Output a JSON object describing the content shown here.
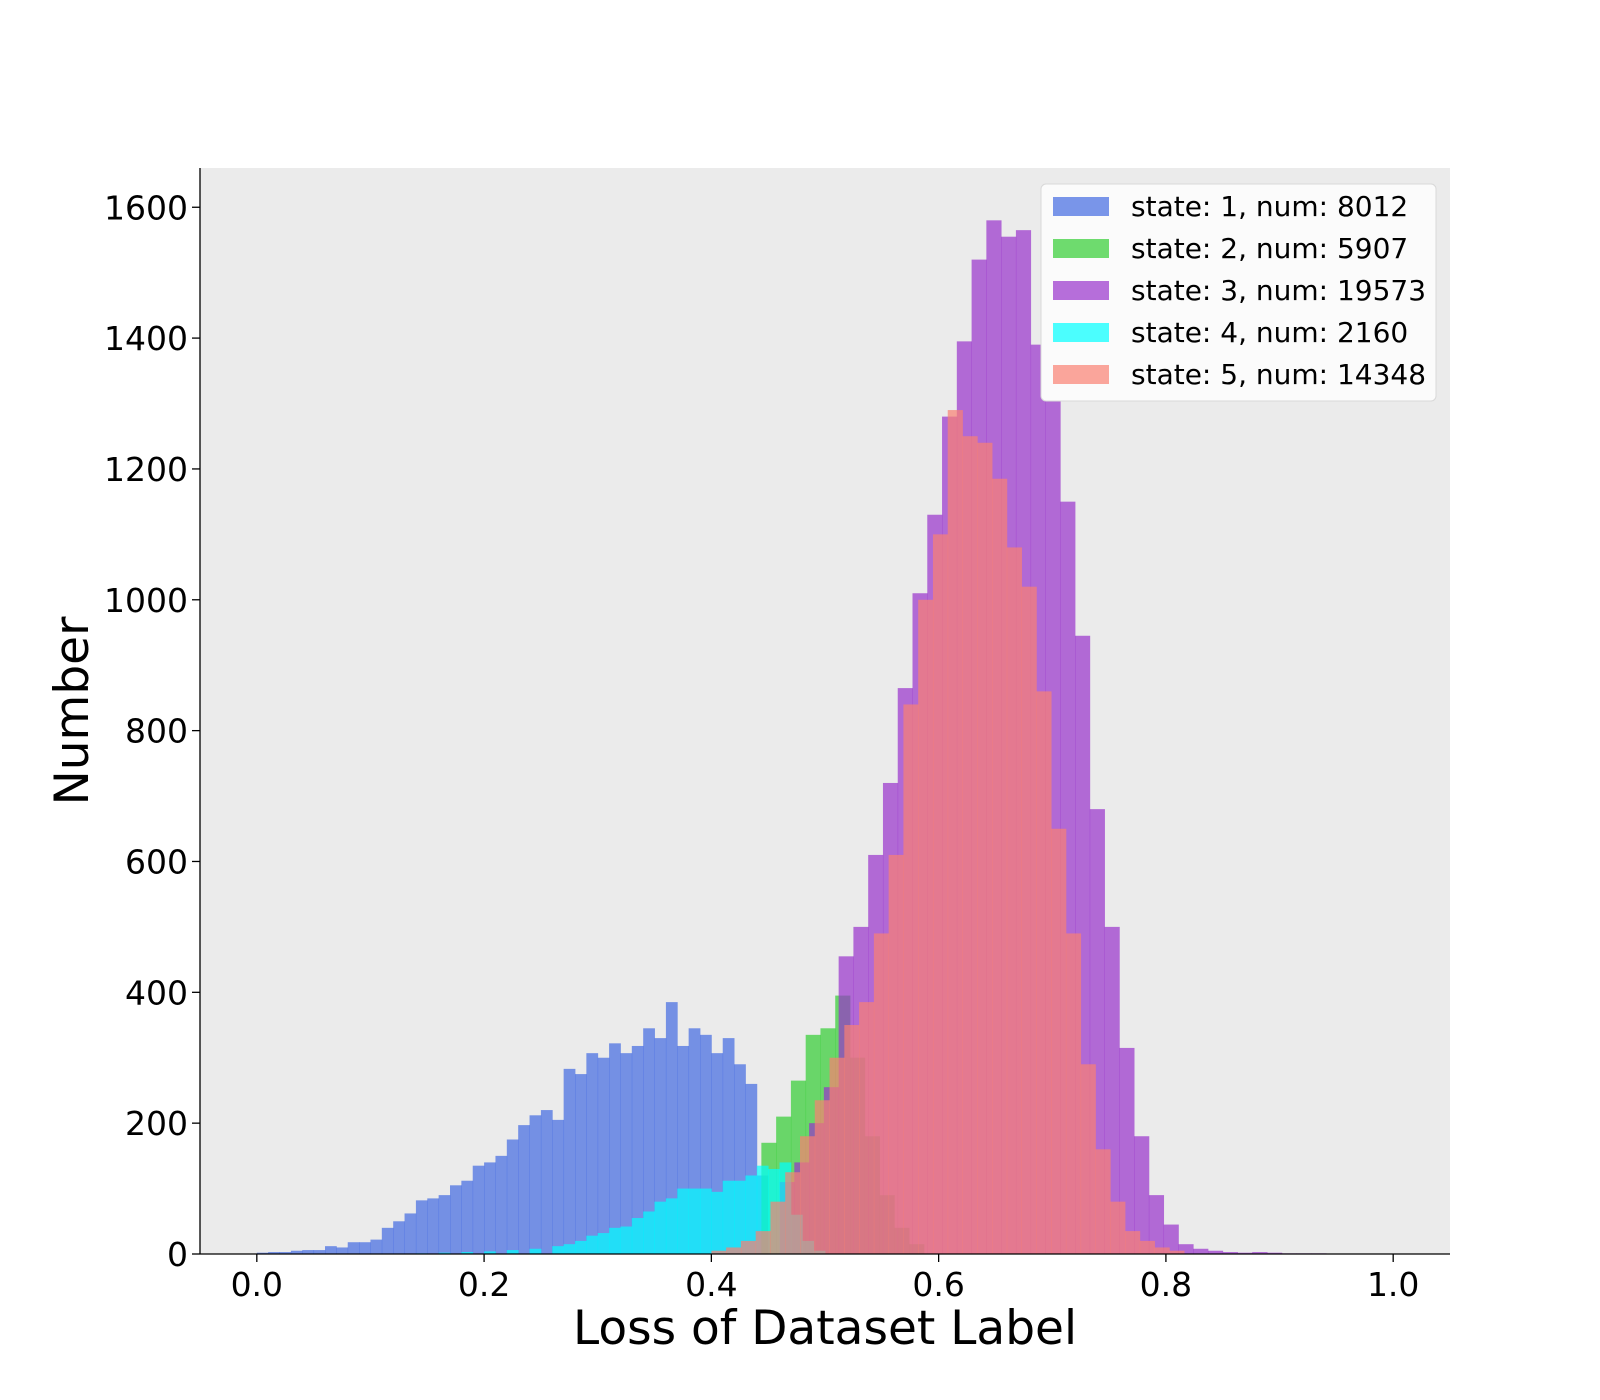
{
  "chart_data": {
    "type": "bar",
    "subtype": "overlapping-histogram",
    "title": "",
    "xlabel": "Loss of Dataset Label",
    "ylabel": "Number",
    "xlim": [
      -0.05,
      1.05
    ],
    "ylim": [
      0,
      1660
    ],
    "xticks": [
      0.0,
      0.2,
      0.4,
      0.6,
      0.8,
      1.0
    ],
    "xtick_labels": [
      "0.0",
      "0.2",
      "0.4",
      "0.6",
      "0.8",
      "1.0"
    ],
    "yticks": [
      0,
      200,
      400,
      600,
      800,
      1000,
      1200,
      1400,
      1600
    ],
    "ytick_labels": [
      "0",
      "200",
      "400",
      "600",
      "800",
      "1000",
      "1200",
      "1400",
      "1600"
    ],
    "grid": false,
    "background": "#ebebeb",
    "legend_position": "top-right",
    "series": [
      {
        "name": "state: 1, num: 8012",
        "color": "#4169e1",
        "bins": [
          [
            0.0,
            0.01,
            2
          ],
          [
            0.01,
            0.01,
            3
          ],
          [
            0.02,
            0.01,
            3
          ],
          [
            0.03,
            0.01,
            5
          ],
          [
            0.04,
            0.01,
            6
          ],
          [
            0.05,
            0.01,
            6
          ],
          [
            0.06,
            0.01,
            12
          ],
          [
            0.07,
            0.01,
            10
          ],
          [
            0.08,
            0.01,
            18
          ],
          [
            0.09,
            0.01,
            18
          ],
          [
            0.1,
            0.01,
            22
          ],
          [
            0.11,
            0.01,
            40
          ],
          [
            0.12,
            0.01,
            50
          ],
          [
            0.13,
            0.01,
            62
          ],
          [
            0.14,
            0.01,
            82
          ],
          [
            0.15,
            0.01,
            85
          ],
          [
            0.16,
            0.01,
            90
          ],
          [
            0.17,
            0.01,
            105
          ],
          [
            0.18,
            0.01,
            112
          ],
          [
            0.19,
            0.01,
            135
          ],
          [
            0.2,
            0.01,
            140
          ],
          [
            0.21,
            0.01,
            150
          ],
          [
            0.22,
            0.01,
            175
          ],
          [
            0.23,
            0.01,
            197
          ],
          [
            0.24,
            0.01,
            212
          ],
          [
            0.25,
            0.01,
            220
          ],
          [
            0.26,
            0.01,
            205
          ],
          [
            0.27,
            0.01,
            283
          ],
          [
            0.28,
            0.01,
            275
          ],
          [
            0.29,
            0.01,
            307
          ],
          [
            0.3,
            0.01,
            300
          ],
          [
            0.31,
            0.01,
            322
          ],
          [
            0.32,
            0.01,
            307
          ],
          [
            0.33,
            0.01,
            318
          ],
          [
            0.34,
            0.01,
            345
          ],
          [
            0.35,
            0.01,
            330
          ],
          [
            0.36,
            0.01,
            385
          ],
          [
            0.37,
            0.01,
            318
          ],
          [
            0.38,
            0.01,
            345
          ],
          [
            0.39,
            0.01,
            335
          ],
          [
            0.4,
            0.01,
            307
          ],
          [
            0.41,
            0.01,
            330
          ],
          [
            0.42,
            0.01,
            290
          ],
          [
            0.43,
            0.01,
            260
          ],
          [
            0.44,
            0.01,
            120
          ]
        ]
      },
      {
        "name": "state: 2, num: 5907",
        "color": "#32cd32",
        "bins": [
          [
            0.444,
            0.013,
            170
          ],
          [
            0.457,
            0.013,
            210
          ],
          [
            0.47,
            0.013,
            265
          ],
          [
            0.483,
            0.013,
            335
          ],
          [
            0.496,
            0.013,
            345
          ],
          [
            0.509,
            0.013,
            395
          ],
          [
            0.522,
            0.013,
            300
          ],
          [
            0.535,
            0.013,
            180
          ],
          [
            0.548,
            0.013,
            90
          ],
          [
            0.561,
            0.013,
            40
          ],
          [
            0.574,
            0.013,
            15
          ]
        ]
      },
      {
        "name": "state: 3, num: 19573",
        "color": "#9932cc",
        "bins": [
          [
            0.46,
            0.013,
            110
          ],
          [
            0.473,
            0.013,
            140
          ],
          [
            0.486,
            0.013,
            200
          ],
          [
            0.499,
            0.013,
            255
          ],
          [
            0.512,
            0.013,
            455
          ],
          [
            0.525,
            0.013,
            500
          ],
          [
            0.538,
            0.013,
            610
          ],
          [
            0.551,
            0.013,
            720
          ],
          [
            0.564,
            0.013,
            865
          ],
          [
            0.577,
            0.013,
            1010
          ],
          [
            0.59,
            0.013,
            1130
          ],
          [
            0.603,
            0.013,
            1280
          ],
          [
            0.616,
            0.013,
            1395
          ],
          [
            0.629,
            0.013,
            1520
          ],
          [
            0.642,
            0.013,
            1580
          ],
          [
            0.655,
            0.013,
            1555
          ],
          [
            0.668,
            0.013,
            1565
          ],
          [
            0.681,
            0.013,
            1390
          ],
          [
            0.694,
            0.013,
            1365
          ],
          [
            0.707,
            0.013,
            1150
          ],
          [
            0.72,
            0.013,
            945
          ],
          [
            0.733,
            0.013,
            680
          ],
          [
            0.746,
            0.013,
            500
          ],
          [
            0.759,
            0.013,
            315
          ],
          [
            0.772,
            0.013,
            180
          ],
          [
            0.785,
            0.013,
            90
          ],
          [
            0.798,
            0.013,
            45
          ],
          [
            0.811,
            0.013,
            15
          ],
          [
            0.824,
            0.013,
            8
          ],
          [
            0.837,
            0.013,
            5
          ],
          [
            0.85,
            0.013,
            3
          ],
          [
            0.863,
            0.013,
            2
          ],
          [
            0.876,
            0.013,
            3
          ],
          [
            0.889,
            0.013,
            2
          ],
          [
            0.902,
            0.013,
            1
          ],
          [
            0.915,
            0.013,
            1
          ],
          [
            0.928,
            0.013,
            1
          ]
        ]
      },
      {
        "name": "state: 4, num: 2160",
        "color": "#00ffff",
        "bins": [
          [
            0.14,
            0.01,
            1
          ],
          [
            0.16,
            0.01,
            2
          ],
          [
            0.18,
            0.01,
            3
          ],
          [
            0.2,
            0.01,
            4
          ],
          [
            0.22,
            0.01,
            6
          ],
          [
            0.24,
            0.01,
            8
          ],
          [
            0.26,
            0.01,
            12
          ],
          [
            0.27,
            0.01,
            15
          ],
          [
            0.28,
            0.01,
            20
          ],
          [
            0.29,
            0.01,
            28
          ],
          [
            0.3,
            0.01,
            32
          ],
          [
            0.31,
            0.01,
            40
          ],
          [
            0.32,
            0.01,
            42
          ],
          [
            0.33,
            0.01,
            55
          ],
          [
            0.34,
            0.01,
            65
          ],
          [
            0.35,
            0.01,
            80
          ],
          [
            0.36,
            0.01,
            85
          ],
          [
            0.37,
            0.01,
            100
          ],
          [
            0.38,
            0.01,
            100
          ],
          [
            0.39,
            0.01,
            100
          ],
          [
            0.4,
            0.01,
            95
          ],
          [
            0.41,
            0.01,
            112
          ],
          [
            0.42,
            0.01,
            112
          ],
          [
            0.43,
            0.01,
            120
          ],
          [
            0.44,
            0.01,
            135
          ],
          [
            0.45,
            0.01,
            130
          ],
          [
            0.46,
            0.01,
            140
          ],
          [
            0.47,
            0.01,
            60
          ],
          [
            0.48,
            0.01,
            20
          ],
          [
            0.49,
            0.01,
            5
          ]
        ]
      },
      {
        "name": "state: 5, num: 14348",
        "color": "#fa8072",
        "bins": [
          [
            0.4,
            0.013,
            5
          ],
          [
            0.413,
            0.013,
            10
          ],
          [
            0.426,
            0.013,
            20
          ],
          [
            0.439,
            0.013,
            35
          ],
          [
            0.452,
            0.013,
            80
          ],
          [
            0.465,
            0.013,
            125
          ],
          [
            0.478,
            0.013,
            180
          ],
          [
            0.491,
            0.013,
            235
          ],
          [
            0.504,
            0.013,
            300
          ],
          [
            0.517,
            0.013,
            350
          ],
          [
            0.53,
            0.013,
            385
          ],
          [
            0.543,
            0.013,
            490
          ],
          [
            0.556,
            0.013,
            610
          ],
          [
            0.569,
            0.013,
            840
          ],
          [
            0.582,
            0.013,
            1000
          ],
          [
            0.595,
            0.013,
            1100
          ],
          [
            0.608,
            0.013,
            1290
          ],
          [
            0.621,
            0.013,
            1250
          ],
          [
            0.634,
            0.013,
            1240
          ],
          [
            0.647,
            0.013,
            1185
          ],
          [
            0.66,
            0.013,
            1080
          ],
          [
            0.673,
            0.013,
            1020
          ],
          [
            0.686,
            0.013,
            860
          ],
          [
            0.699,
            0.013,
            650
          ],
          [
            0.712,
            0.013,
            490
          ],
          [
            0.725,
            0.013,
            290
          ],
          [
            0.738,
            0.013,
            160
          ],
          [
            0.751,
            0.013,
            80
          ],
          [
            0.764,
            0.013,
            35
          ],
          [
            0.777,
            0.013,
            20
          ],
          [
            0.79,
            0.013,
            10
          ],
          [
            0.803,
            0.013,
            5
          ]
        ]
      }
    ]
  }
}
